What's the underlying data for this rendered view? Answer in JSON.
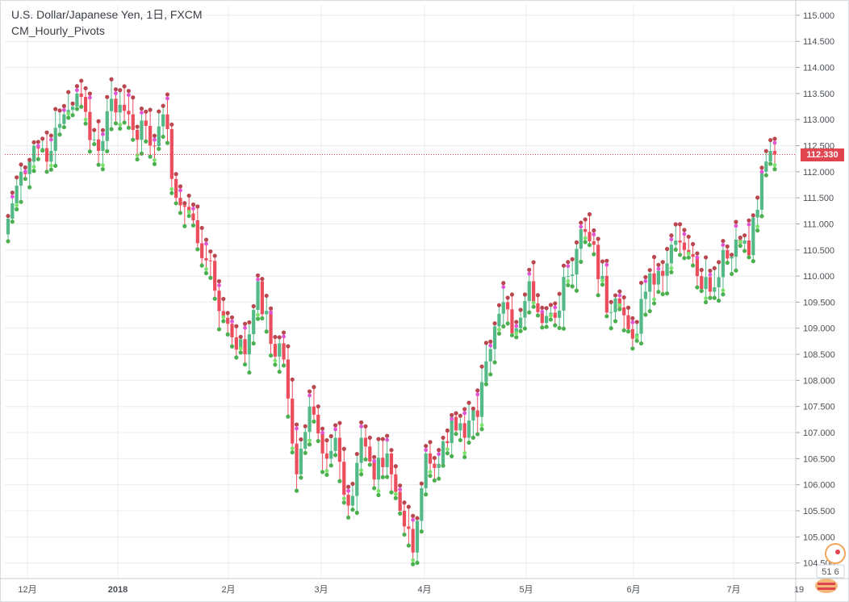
{
  "legend": {
    "symbol_line": "U.S. Dollar/Japanese Yen, 1日, FXCM",
    "indicator": "CM_Hourly_Pivots"
  },
  "current_price": "112.330",
  "colors": {
    "up": "#53b987",
    "down": "#eb4d5c",
    "pivot_dark": "#b9474f",
    "pivot_magenta": "#e254d6",
    "pivot_green": "#4caf50",
    "pivot_lightgreen": "#7be36b",
    "grid": "#e9ecef",
    "price_line": "#e0454f"
  },
  "widget_number": "51 6",
  "chart_data": {
    "type": "candlestick",
    "title": "U.S. Dollar/Japanese Yen, 1日, FXCM",
    "indicator": "CM_Hourly_Pivots",
    "ylim": [
      104.2,
      115.2
    ],
    "y_ticks": [
      "115.000",
      "114.500",
      "114.000",
      "113.500",
      "113.000",
      "112.500",
      "112.000",
      "111.500",
      "111.000",
      "110.500",
      "110.000",
      "109.500",
      "109.000",
      "108.500",
      "108.000",
      "107.500",
      "107.000",
      "106.500",
      "106.000",
      "105.500",
      "105.000",
      "104.500"
    ],
    "x_ticks": [
      {
        "label": "12月",
        "bold": false
      },
      {
        "label": "2018",
        "bold": true
      },
      {
        "label": "2月",
        "bold": false
      },
      {
        "label": "3月",
        "bold": false
      },
      {
        "label": "4月",
        "bold": false
      },
      {
        "label": "5月",
        "bold": false
      },
      {
        "label": "6月",
        "bold": false
      },
      {
        "label": "7月",
        "bold": false
      },
      {
        "label": "19",
        "bold": false
      }
    ],
    "anchors": [
      [
        0,
        111.1
      ],
      [
        3,
        112.0
      ],
      [
        6,
        112.5
      ],
      [
        10,
        112.4
      ],
      [
        13,
        113.1
      ],
      [
        16,
        113.5
      ],
      [
        21,
        112.4
      ],
      [
        24,
        113.4
      ],
      [
        28,
        113.1
      ],
      [
        33,
        112.5
      ],
      [
        36,
        113.1
      ],
      [
        39,
        111.5
      ],
      [
        42,
        111.2
      ],
      [
        46,
        110.3
      ],
      [
        50,
        109.2
      ],
      [
        55,
        108.5
      ],
      [
        58,
        109.9
      ],
      [
        61,
        108.7
      ],
      [
        64,
        108.4
      ],
      [
        67,
        106.2
      ],
      [
        70,
        107.5
      ],
      [
        73,
        106.6
      ],
      [
        76,
        106.9
      ],
      [
        79,
        105.6
      ],
      [
        82,
        106.9
      ],
      [
        85,
        106.1
      ],
      [
        88,
        106.6
      ],
      [
        91,
        105.5
      ],
      [
        94,
        104.7
      ],
      [
        97,
        106.6
      ],
      [
        100,
        106.4
      ],
      [
        103,
        107.3
      ],
      [
        106,
        106.9
      ],
      [
        109,
        107.3
      ],
      [
        112,
        108.6
      ],
      [
        115,
        109.5
      ],
      [
        118,
        109.0
      ],
      [
        121,
        109.9
      ],
      [
        124,
        109.1
      ],
      [
        127,
        109.2
      ],
      [
        130,
        110.0
      ],
      [
        133,
        110.9
      ],
      [
        136,
        110.6
      ],
      [
        139,
        109.3
      ],
      [
        142,
        109.4
      ],
      [
        145,
        108.8
      ],
      [
        148,
        109.7
      ],
      [
        151,
        110.1
      ],
      [
        154,
        110.6
      ],
      [
        157,
        110.5
      ],
      [
        160,
        110.0
      ],
      [
        163,
        109.7
      ],
      [
        166,
        110.5
      ],
      [
        169,
        110.7
      ],
      [
        172,
        110.4
      ],
      [
        175,
        112.0
      ],
      [
        177,
        112.4
      ],
      [
        178,
        112.3
      ]
    ],
    "last_price": 112.33
  }
}
